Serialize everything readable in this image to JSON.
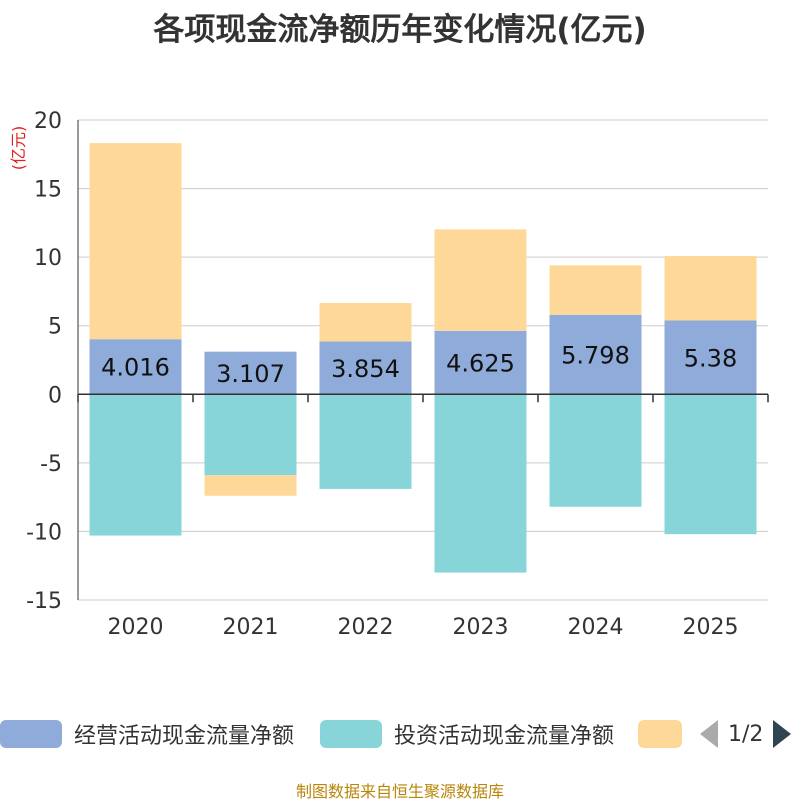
{
  "chart_data": {
    "type": "bar",
    "stacked": true,
    "title": "各项现金流净额历年变化情况(亿元)",
    "ylabel": "(亿元)",
    "xlabel": "",
    "ylim": [
      -15,
      20
    ],
    "yticks": [
      -15,
      -10,
      -5,
      0,
      5,
      10,
      15,
      20
    ],
    "grid": true,
    "categories": [
      "2020",
      "2021",
      "2022",
      "2023",
      "2024",
      "2025"
    ],
    "series": [
      {
        "name": "经营活动现金流量净额",
        "color": "#8eabda",
        "values": [
          4.016,
          3.107,
          3.854,
          4.625,
          5.798,
          5.38
        ],
        "labels": [
          "4.016",
          "3.107",
          "3.854",
          "4.625",
          "5.798",
          "5.38"
        ]
      },
      {
        "name": "投资活动现金流量净额",
        "color": "#87d5d8",
        "values": [
          -10.3,
          -5.9,
          -6.9,
          -13.0,
          -8.2,
          -10.2
        ]
      },
      {
        "name": "",
        "color": "#fed898",
        "values": [
          14.3,
          -1.5,
          2.8,
          7.4,
          3.6,
          4.7
        ]
      }
    ]
  },
  "legend": {
    "items": [
      {
        "label": "经营活动现金流量净额",
        "color": "#8eabda"
      },
      {
        "label": "投资活动现金流量净额",
        "color": "#87d5d8"
      },
      {
        "label": "",
        "color": "#fed898"
      }
    ],
    "page": "1/2"
  },
  "source": "制图数据来自恒生聚源数据库"
}
